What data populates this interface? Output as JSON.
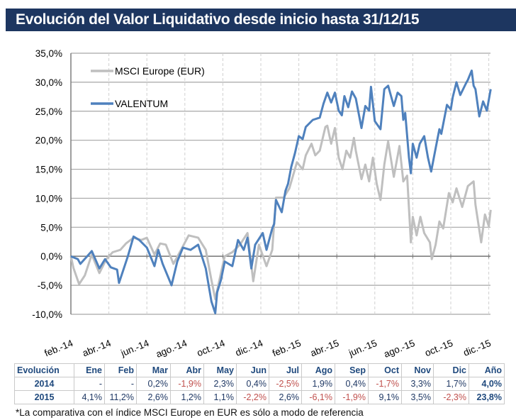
{
  "header": {
    "title": "Evolución del Valor Liquidativo desde inicio hasta 31/12/15"
  },
  "chart_data": {
    "type": "line",
    "title": "",
    "xlabel": "",
    "ylabel": "",
    "ylim": [
      -10,
      35
    ],
    "y_ticks": [
      "35,0%",
      "30,0%",
      "25,0%",
      "20,0%",
      "15,0%",
      "10,0%",
      "5,0%",
      "0,0%",
      "-5,0%",
      "-10,0%"
    ],
    "y_tick_values": [
      35,
      30,
      25,
      20,
      15,
      10,
      5,
      0,
      -5,
      -10
    ],
    "x_ticks": [
      "feb.-14",
      "abr.-14",
      "jun.-14",
      "ago.-14",
      "oct.-14",
      "dic.-14",
      "feb.-15",
      "abr.-15",
      "jun.-15",
      "ago.-15",
      "oct.-15",
      "dic.-15"
    ],
    "x_tick_dates": [
      "2014-02-01",
      "2014-04-01",
      "2014-06-01",
      "2014-08-01",
      "2014-10-01",
      "2014-12-01",
      "2015-02-01",
      "2015-04-01",
      "2015-06-01",
      "2015-08-01",
      "2015-10-01",
      "2015-12-01"
    ],
    "grid": {
      "horizontal": true,
      "vertical_dashed": true
    },
    "legend_position": "top-left",
    "series": [
      {
        "name": "MSCI Europe (EUR)",
        "color": "#bfbfbf",
        "points": [
          [
            "2014-02-01",
            0
          ],
          [
            "2014-02-05",
            -2
          ],
          [
            "2014-02-14",
            -4.8
          ],
          [
            "2014-02-23",
            -3.3
          ],
          [
            "2014-03-04",
            0.3
          ],
          [
            "2014-03-16",
            -2.9
          ],
          [
            "2014-03-27",
            -0.5
          ],
          [
            "2014-04-07",
            0.7
          ],
          [
            "2014-04-19",
            1.1
          ],
          [
            "2014-04-28",
            2.2
          ],
          [
            "2014-05-10",
            3.2
          ],
          [
            "2014-05-22",
            2.8
          ],
          [
            "2014-06-01",
            3.2
          ],
          [
            "2014-06-13",
            0.3
          ],
          [
            "2014-06-22",
            2.2
          ],
          [
            "2014-07-01",
            2.0
          ],
          [
            "2014-07-13",
            -1.3
          ],
          [
            "2014-07-25",
            1.1
          ],
          [
            "2014-08-07",
            3.6
          ],
          [
            "2014-08-22",
            3.2
          ],
          [
            "2014-09-04",
            1.1
          ],
          [
            "2014-09-13",
            -4.1
          ],
          [
            "2014-09-19",
            -7.4
          ],
          [
            "2014-09-28",
            -2.9
          ],
          [
            "2014-10-04",
            0
          ],
          [
            "2014-10-16",
            0.7
          ],
          [
            "2014-10-28",
            2.0
          ],
          [
            "2014-11-10",
            4.0
          ],
          [
            "2014-11-19",
            -4.3
          ],
          [
            "2014-11-28",
            2.0
          ],
          [
            "2014-12-10",
            -1.7
          ],
          [
            "2014-12-19",
            1.1
          ],
          [
            "2014-12-25",
            10.1
          ],
          [
            "2015-01-07",
            10.1
          ],
          [
            "2015-01-16",
            11.7
          ],
          [
            "2015-01-28",
            16.2
          ],
          [
            "2015-02-07",
            15.0
          ],
          [
            "2015-02-12",
            17.4
          ],
          [
            "2015-02-21",
            19.4
          ],
          [
            "2015-02-27",
            17.4
          ],
          [
            "2015-03-04",
            18.2
          ],
          [
            "2015-03-13",
            22.3
          ],
          [
            "2015-03-16",
            22.5
          ],
          [
            "2015-03-22",
            19.4
          ],
          [
            "2015-03-28",
            22.1
          ],
          [
            "2015-04-04",
            17.0
          ],
          [
            "2015-04-10",
            15.0
          ],
          [
            "2015-04-16",
            18.2
          ],
          [
            "2015-04-22",
            17.0
          ],
          [
            "2015-04-28",
            20.4
          ],
          [
            "2015-05-01",
            18.2
          ],
          [
            "2015-05-10",
            13.3
          ],
          [
            "2015-05-16",
            15.8
          ],
          [
            "2015-05-22",
            12.9
          ],
          [
            "2015-05-28",
            17.0
          ],
          [
            "2015-06-04",
            12.5
          ],
          [
            "2015-06-10",
            9.7
          ],
          [
            "2015-06-16",
            15.8
          ],
          [
            "2015-06-22",
            19.8
          ],
          [
            "2015-07-01",
            13.7
          ],
          [
            "2015-07-10",
            19.0
          ],
          [
            "2015-07-16",
            12.9
          ],
          [
            "2015-07-22",
            13.9
          ],
          [
            "2015-07-28",
            2.4
          ],
          [
            "2015-08-01",
            6.8
          ],
          [
            "2015-08-07",
            3.6
          ],
          [
            "2015-08-13",
            6.8
          ],
          [
            "2015-08-19",
            4.0
          ],
          [
            "2015-08-28",
            2.4
          ],
          [
            "2015-09-01",
            -0.5
          ],
          [
            "2015-09-07",
            2.0
          ],
          [
            "2015-09-13",
            6.0
          ],
          [
            "2015-09-19",
            4.8
          ],
          [
            "2015-09-28",
            10.9
          ],
          [
            "2015-10-04",
            9.3
          ],
          [
            "2015-10-10",
            11.7
          ],
          [
            "2015-10-19",
            8.5
          ],
          [
            "2015-10-28",
            12.1
          ],
          [
            "2015-11-07",
            12.9
          ],
          [
            "2015-11-10",
            8.9
          ],
          [
            "2015-11-19",
            2.4
          ],
          [
            "2015-11-25",
            7.2
          ],
          [
            "2015-12-01",
            5.2
          ],
          [
            "2015-12-04",
            8.0
          ]
        ]
      },
      {
        "name": "VALENTUM",
        "color": "#4f81bd",
        "points": [
          [
            "2014-02-01",
            0
          ],
          [
            "2014-02-12",
            -0.5
          ],
          [
            "2014-02-16",
            -1.3
          ],
          [
            "2014-03-04",
            0.9
          ],
          [
            "2014-03-16",
            -2.1
          ],
          [
            "2014-03-25",
            -0.5
          ],
          [
            "2014-04-04",
            -1.9
          ],
          [
            "2014-04-14",
            -2.3
          ],
          [
            "2014-04-17",
            -4.6
          ],
          [
            "2014-05-01",
            0
          ],
          [
            "2014-05-10",
            3.4
          ],
          [
            "2014-05-19",
            2.8
          ],
          [
            "2014-06-01",
            1.5
          ],
          [
            "2014-06-13",
            -1.7
          ],
          [
            "2014-06-19",
            1.1
          ],
          [
            "2014-06-26",
            -1.3
          ],
          [
            "2014-07-10",
            -5.0
          ],
          [
            "2014-07-19",
            -0.9
          ],
          [
            "2014-07-28",
            1.5
          ],
          [
            "2014-08-10",
            1.1
          ],
          [
            "2014-08-22",
            2.0
          ],
          [
            "2014-09-04",
            -2.1
          ],
          [
            "2014-09-13",
            -7.8
          ],
          [
            "2014-09-19",
            -9.8
          ],
          [
            "2014-09-22",
            -6.2
          ],
          [
            "2014-09-28",
            -4.1
          ],
          [
            "2014-10-04",
            -0.9
          ],
          [
            "2014-10-16",
            -1.7
          ],
          [
            "2014-10-25",
            2.8
          ],
          [
            "2014-11-04",
            1.1
          ],
          [
            "2014-11-10",
            3.2
          ],
          [
            "2014-11-16",
            -2.1
          ],
          [
            "2014-11-22",
            2.0
          ],
          [
            "2014-12-04",
            4.0
          ],
          [
            "2014-12-10",
            1.1
          ],
          [
            "2014-12-19",
            4.8
          ],
          [
            "2014-12-22",
            5.6
          ],
          [
            "2014-12-25",
            9.7
          ],
          [
            "2015-01-04",
            7.6
          ],
          [
            "2015-01-10",
            11.3
          ],
          [
            "2015-01-14",
            12.5
          ],
          [
            "2015-01-19",
            15.4
          ],
          [
            "2015-01-25",
            17.8
          ],
          [
            "2015-02-01",
            20.7
          ],
          [
            "2015-02-07",
            20.2
          ],
          [
            "2015-02-12",
            22.3
          ],
          [
            "2015-02-23",
            23.5
          ],
          [
            "2015-03-04",
            23.9
          ],
          [
            "2015-03-10",
            26.3
          ],
          [
            "2015-03-16",
            28.2
          ],
          [
            "2015-03-22",
            26.5
          ],
          [
            "2015-03-28",
            28.2
          ],
          [
            "2015-04-04",
            25.1
          ],
          [
            "2015-04-09",
            24.3
          ],
          [
            "2015-04-13",
            27.6
          ],
          [
            "2015-04-19",
            25.7
          ],
          [
            "2015-04-25",
            28.4
          ],
          [
            "2015-05-01",
            27.2
          ],
          [
            "2015-05-10",
            22.1
          ],
          [
            "2015-05-16",
            25.9
          ],
          [
            "2015-05-22",
            25.1
          ],
          [
            "2015-05-25",
            29.2
          ],
          [
            "2015-06-01",
            23.3
          ],
          [
            "2015-06-10",
            21.9
          ],
          [
            "2015-06-16",
            28.8
          ],
          [
            "2015-06-22",
            29.4
          ],
          [
            "2015-07-01",
            25.9
          ],
          [
            "2015-07-07",
            28.2
          ],
          [
            "2015-07-13",
            27.6
          ],
          [
            "2015-07-16",
            23.5
          ],
          [
            "2015-07-19",
            24.7
          ],
          [
            "2015-07-25",
            17.0
          ],
          [
            "2015-07-28",
            14.3
          ],
          [
            "2015-08-01",
            19.4
          ],
          [
            "2015-08-07",
            17.0
          ],
          [
            "2015-08-12",
            19.4
          ],
          [
            "2015-08-19",
            20.7
          ],
          [
            "2015-08-25",
            17.0
          ],
          [
            "2015-08-30",
            14.6
          ],
          [
            "2015-09-07",
            18.6
          ],
          [
            "2015-09-13",
            21.9
          ],
          [
            "2015-09-16",
            21.1
          ],
          [
            "2015-09-25",
            26.1
          ],
          [
            "2015-10-01",
            25.3
          ],
          [
            "2015-10-04",
            27.4
          ],
          [
            "2015-10-10",
            30.0
          ],
          [
            "2015-10-16",
            27.8
          ],
          [
            "2015-10-25",
            29.8
          ],
          [
            "2015-10-28",
            30.4
          ],
          [
            "2015-11-04",
            32.0
          ],
          [
            "2015-11-07",
            29.4
          ],
          [
            "2015-11-10",
            28.8
          ],
          [
            "2015-11-16",
            24.1
          ],
          [
            "2015-11-22",
            26.7
          ],
          [
            "2015-11-28",
            25.1
          ],
          [
            "2015-12-04",
            28.8
          ]
        ]
      }
    ]
  },
  "table": {
    "headers": [
      "Evolución",
      "Ene",
      "Feb",
      "Mar",
      "Abr",
      "May",
      "Jun",
      "Jul",
      "Ago",
      "Sep",
      "Oct",
      "Nov",
      "Dic",
      "Año"
    ],
    "rows": [
      {
        "year": "2014",
        "values": [
          "-",
          "-",
          "0,2%",
          "-1,9%",
          "2,3%",
          "0,4%",
          "-2,5%",
          "1,9%",
          "0,4%",
          "-1,7%",
          "3,3%",
          "1,7%"
        ],
        "total": "4,0%"
      },
      {
        "year": "2015",
        "values": [
          "4,1%",
          "11,2%",
          "2,6%",
          "1,2%",
          "1,1%",
          "-2,2%",
          "2,6%",
          "-6,1%",
          "-1,9%",
          "9,1%",
          "3,5%",
          "-2,3%"
        ],
        "total": "23,8%"
      }
    ]
  },
  "footnote": "*La comparativa con el índice MSCI Europe en EUR es sólo a modo de referencia"
}
